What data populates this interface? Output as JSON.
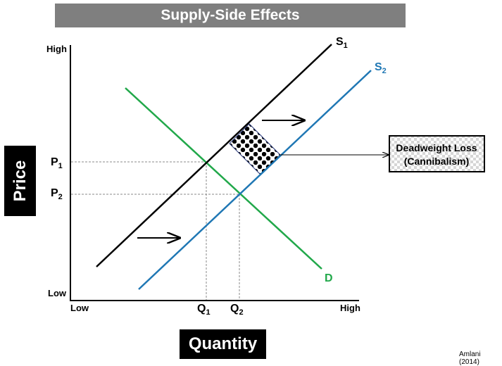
{
  "title": "Supply-Side Effects",
  "y_axis": {
    "title": "Price",
    "high": "High",
    "low": "Low"
  },
  "x_axis": {
    "title": "Quantity",
    "low": "Low",
    "high": "High"
  },
  "curves": {
    "s1": {
      "letter": "S",
      "sub": "1",
      "color": "#000000"
    },
    "s2": {
      "letter": "S",
      "sub": "2",
      "color": "#1f77b4"
    },
    "d": {
      "letter": "D",
      "color": "#21a84a"
    }
  },
  "prices": [
    {
      "letter": "P",
      "sub": "1"
    },
    {
      "letter": "P",
      "sub": "2"
    }
  ],
  "quantities": [
    {
      "letter": "Q",
      "sub": "1"
    },
    {
      "letter": "Q",
      "sub": "2"
    }
  ],
  "callout": {
    "line1": "Deadweight Loss",
    "line2": "(Cannibalism)"
  },
  "credit": "Amlani (2014)"
}
